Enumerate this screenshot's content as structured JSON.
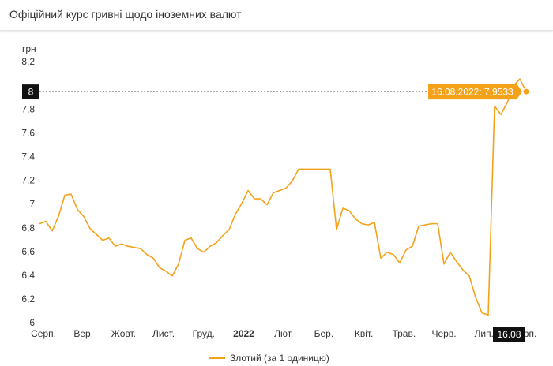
{
  "header": {
    "title": "Офіційний курс гривні щодо іноземних валют"
  },
  "chart_data": {
    "type": "line",
    "y_label": "грн",
    "x_labels": [
      "Серп.",
      "Вер.",
      "Жовт.",
      "Лист.",
      "Груд.",
      "2022",
      "Лют.",
      "Бер.",
      "Квіт.",
      "Трав.",
      "Черв.",
      "Лип.",
      "Серп."
    ],
    "ylim": [
      6,
      8.2
    ],
    "yticks": [
      6,
      {
        "value": 6.2,
        "label": "6,2"
      },
      {
        "value": 6.4,
        "label": "6,4"
      },
      {
        "value": 6.6,
        "label": "6,6"
      },
      {
        "value": 6.8,
        "label": "6,8"
      },
      7,
      {
        "value": 7.2,
        "label": "7,2"
      },
      {
        "value": 7.4,
        "label": "7,4"
      },
      {
        "value": 7.6,
        "label": "7,6"
      },
      {
        "value": 7.8,
        "label": "7,8"
      },
      {
        "value": 8.2,
        "label": "8,2"
      }
    ],
    "grid": false,
    "series": [
      {
        "name": "Злотий (за 1 одиницю)",
        "color": "#f5a21b",
        "values": [
          6.84,
          6.86,
          6.78,
          6.9,
          7.08,
          7.09,
          6.96,
          6.9,
          6.8,
          6.75,
          6.7,
          6.72,
          6.65,
          6.67,
          6.65,
          6.64,
          6.63,
          6.58,
          6.55,
          6.47,
          6.44,
          6.4,
          6.5,
          6.7,
          6.72,
          6.63,
          6.6,
          6.65,
          6.68,
          6.74,
          6.79,
          6.92,
          7.01,
          7.12,
          7.05,
          7.05,
          7.0,
          7.1,
          7.12,
          7.14,
          7.2,
          7.3,
          7.3,
          7.3,
          7.3,
          7.3,
          7.3,
          6.79,
          6.97,
          6.95,
          6.88,
          6.84,
          6.83,
          6.85,
          6.55,
          6.6,
          6.58,
          6.51,
          6.62,
          6.65,
          6.82,
          6.83,
          6.84,
          6.84,
          6.5,
          6.6,
          6.52,
          6.45,
          6.4,
          6.22,
          6.09,
          6.07,
          7.83,
          7.76,
          7.86,
          8.0,
          8.06,
          7.9533
        ]
      }
    ],
    "tooltip": "16.08.2022: 7,9533",
    "crosshair_x_label": "16.08",
    "crosshair_y_label": "8"
  }
}
